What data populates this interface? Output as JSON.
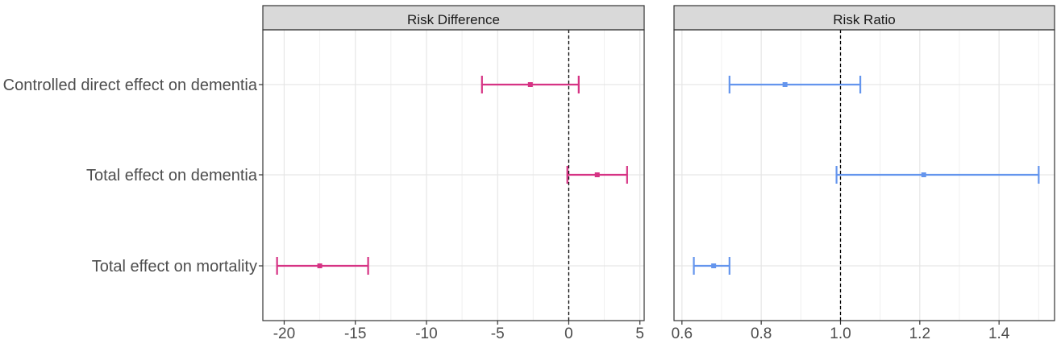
{
  "chart_data": {
    "type": "errorbar",
    "categories": [
      "Controlled direct effect on dementia",
      "Total effect on dementia",
      "Total effect on mortality"
    ],
    "panels": [
      {
        "title": "Risk Difference",
        "color": "#d63384",
        "xlim": [
          -21.5,
          5.3
        ],
        "xticks": [
          -20,
          -15,
          -10,
          -5,
          0,
          5
        ],
        "xtick_labels": [
          "-20",
          "-15",
          "-10",
          "-5",
          "0",
          "5"
        ],
        "reference_line": 0,
        "estimates": [
          {
            "category": "Controlled direct effect on dementia",
            "estimate": -2.7,
            "lower": -6.1,
            "upper": 0.7
          },
          {
            "category": "Total effect on dementia",
            "estimate": 2.0,
            "lower": -0.1,
            "upper": 4.1
          },
          {
            "category": "Total effect on mortality",
            "estimate": -17.5,
            "lower": -20.5,
            "upper": -14.1
          }
        ]
      },
      {
        "title": "Risk Ratio",
        "color": "#6495ed",
        "xlim": [
          0.58,
          1.54
        ],
        "xticks": [
          0.6,
          0.8,
          1.0,
          1.2,
          1.4
        ],
        "xtick_labels": [
          "0.6",
          "0.8",
          "1.0",
          "1.2",
          "1.4"
        ],
        "reference_line": 1.0,
        "estimates": [
          {
            "category": "Controlled direct effect on dementia",
            "estimate": 0.86,
            "lower": 0.72,
            "upper": 1.05
          },
          {
            "category": "Total effect on dementia",
            "estimate": 1.21,
            "lower": 0.99,
            "upper": 1.5
          },
          {
            "category": "Total effect on mortality",
            "estimate": 0.68,
            "lower": 0.63,
            "upper": 0.72
          }
        ]
      }
    ],
    "grid": true,
    "legend": "none"
  }
}
